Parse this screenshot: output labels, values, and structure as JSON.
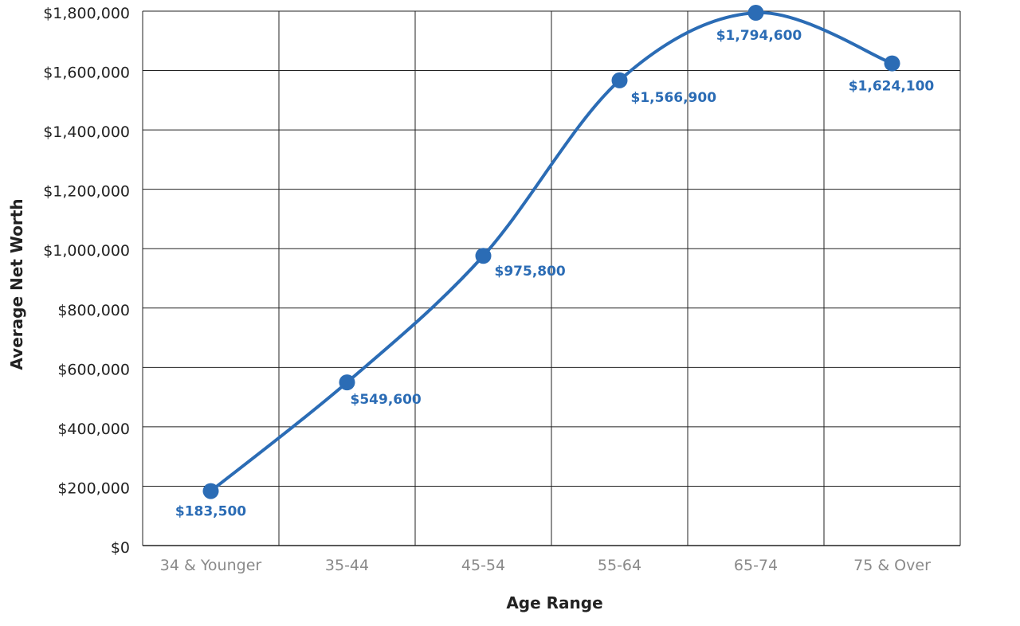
{
  "chart_data": {
    "type": "line",
    "title": "",
    "xlabel": "Age Range",
    "ylabel": "Average Net Worth",
    "categories": [
      "34 & Younger",
      "35-44",
      "45-54",
      "55-64",
      "65-74",
      "75 & Over"
    ],
    "values": [
      183500,
      549600,
      975800,
      1566900,
      1794600,
      1624100
    ],
    "data_labels": [
      "$183,500",
      "$549,600",
      "$975,800",
      "$1,566,900",
      "$1,794,600",
      "$1,624,100"
    ],
    "yticks": [
      0,
      200000,
      400000,
      600000,
      800000,
      1000000,
      1200000,
      1400000,
      1600000,
      1800000
    ],
    "ytick_labels": [
      "$0",
      "$200,000",
      "$400,000",
      "$600,000",
      "$800,000",
      "$1,000,000",
      "$1,200,000",
      "$1,400,000",
      "$1,600,000",
      "$1,800,000"
    ],
    "ylim": [
      0,
      1800000
    ],
    "grid": true,
    "smooth": true,
    "legend": "none",
    "colors": {
      "series": "#2b6cb5",
      "grid": "#222222",
      "tick_text": "#222222",
      "category_text": "#8a8a8a"
    }
  }
}
